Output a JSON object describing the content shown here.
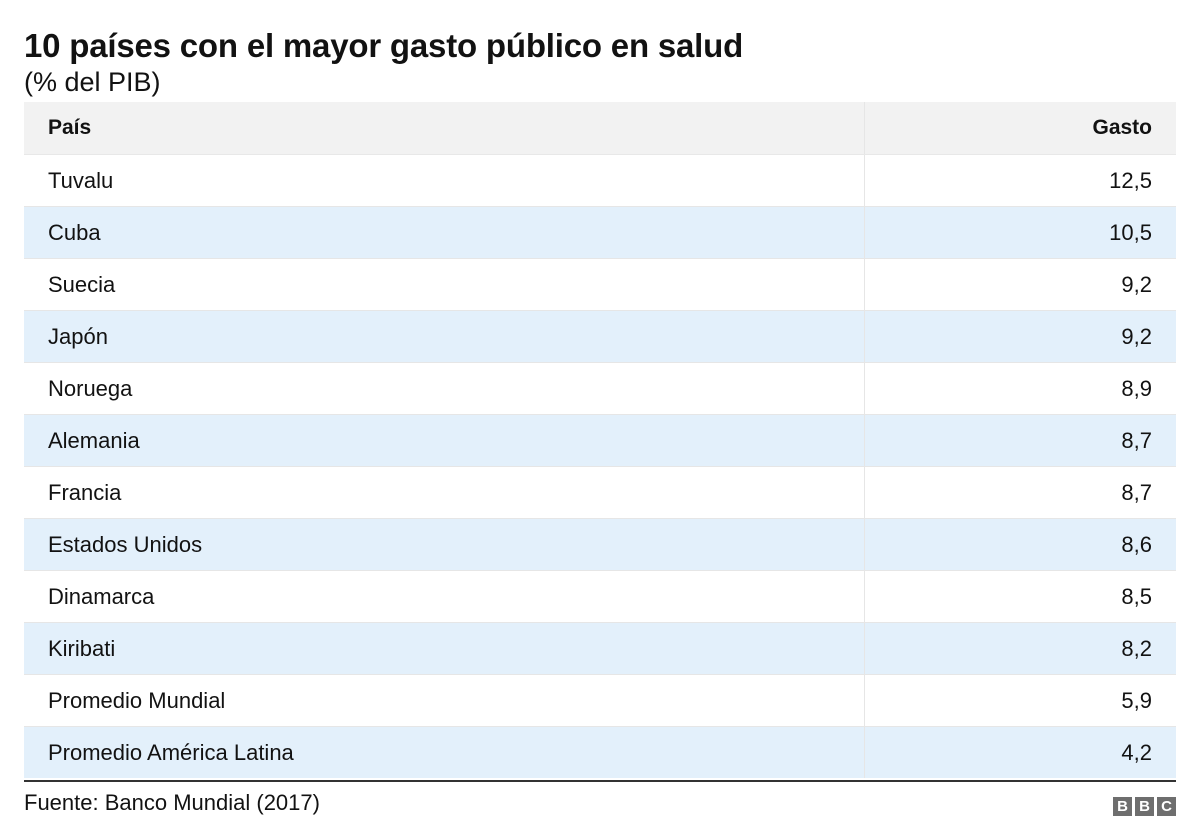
{
  "chart_data": {
    "type": "table",
    "title": "10 países con el mayor gasto público en salud",
    "subtitle": "(% del PIB)",
    "columns": [
      "País",
      "Gasto"
    ],
    "rows": [
      {
        "country": "Tuvalu",
        "value": "12,5"
      },
      {
        "country": "Cuba",
        "value": "10,5"
      },
      {
        "country": "Suecia",
        "value": "9,2"
      },
      {
        "country": "Japón",
        "value": "9,2"
      },
      {
        "country": "Noruega",
        "value": "8,9"
      },
      {
        "country": "Alemania",
        "value": "8,7"
      },
      {
        "country": "Francia",
        "value": "8,7"
      },
      {
        "country": "Estados Unidos",
        "value": "8,6"
      },
      {
        "country": "Dinamarca",
        "value": "8,5"
      },
      {
        "country": "Kiribati",
        "value": "8,2"
      },
      {
        "country": "Promedio Mundial",
        "value": "5,9"
      },
      {
        "country": "Promedio América Latina",
        "value": "4,2"
      }
    ],
    "source": "Fuente: Banco Mundial (2017)",
    "row_stripe_color": "#e3f0fb",
    "header_color": "#f2f2f2"
  },
  "logo": {
    "letters": [
      "B",
      "B",
      "C"
    ],
    "color": "#6e6e6e"
  }
}
